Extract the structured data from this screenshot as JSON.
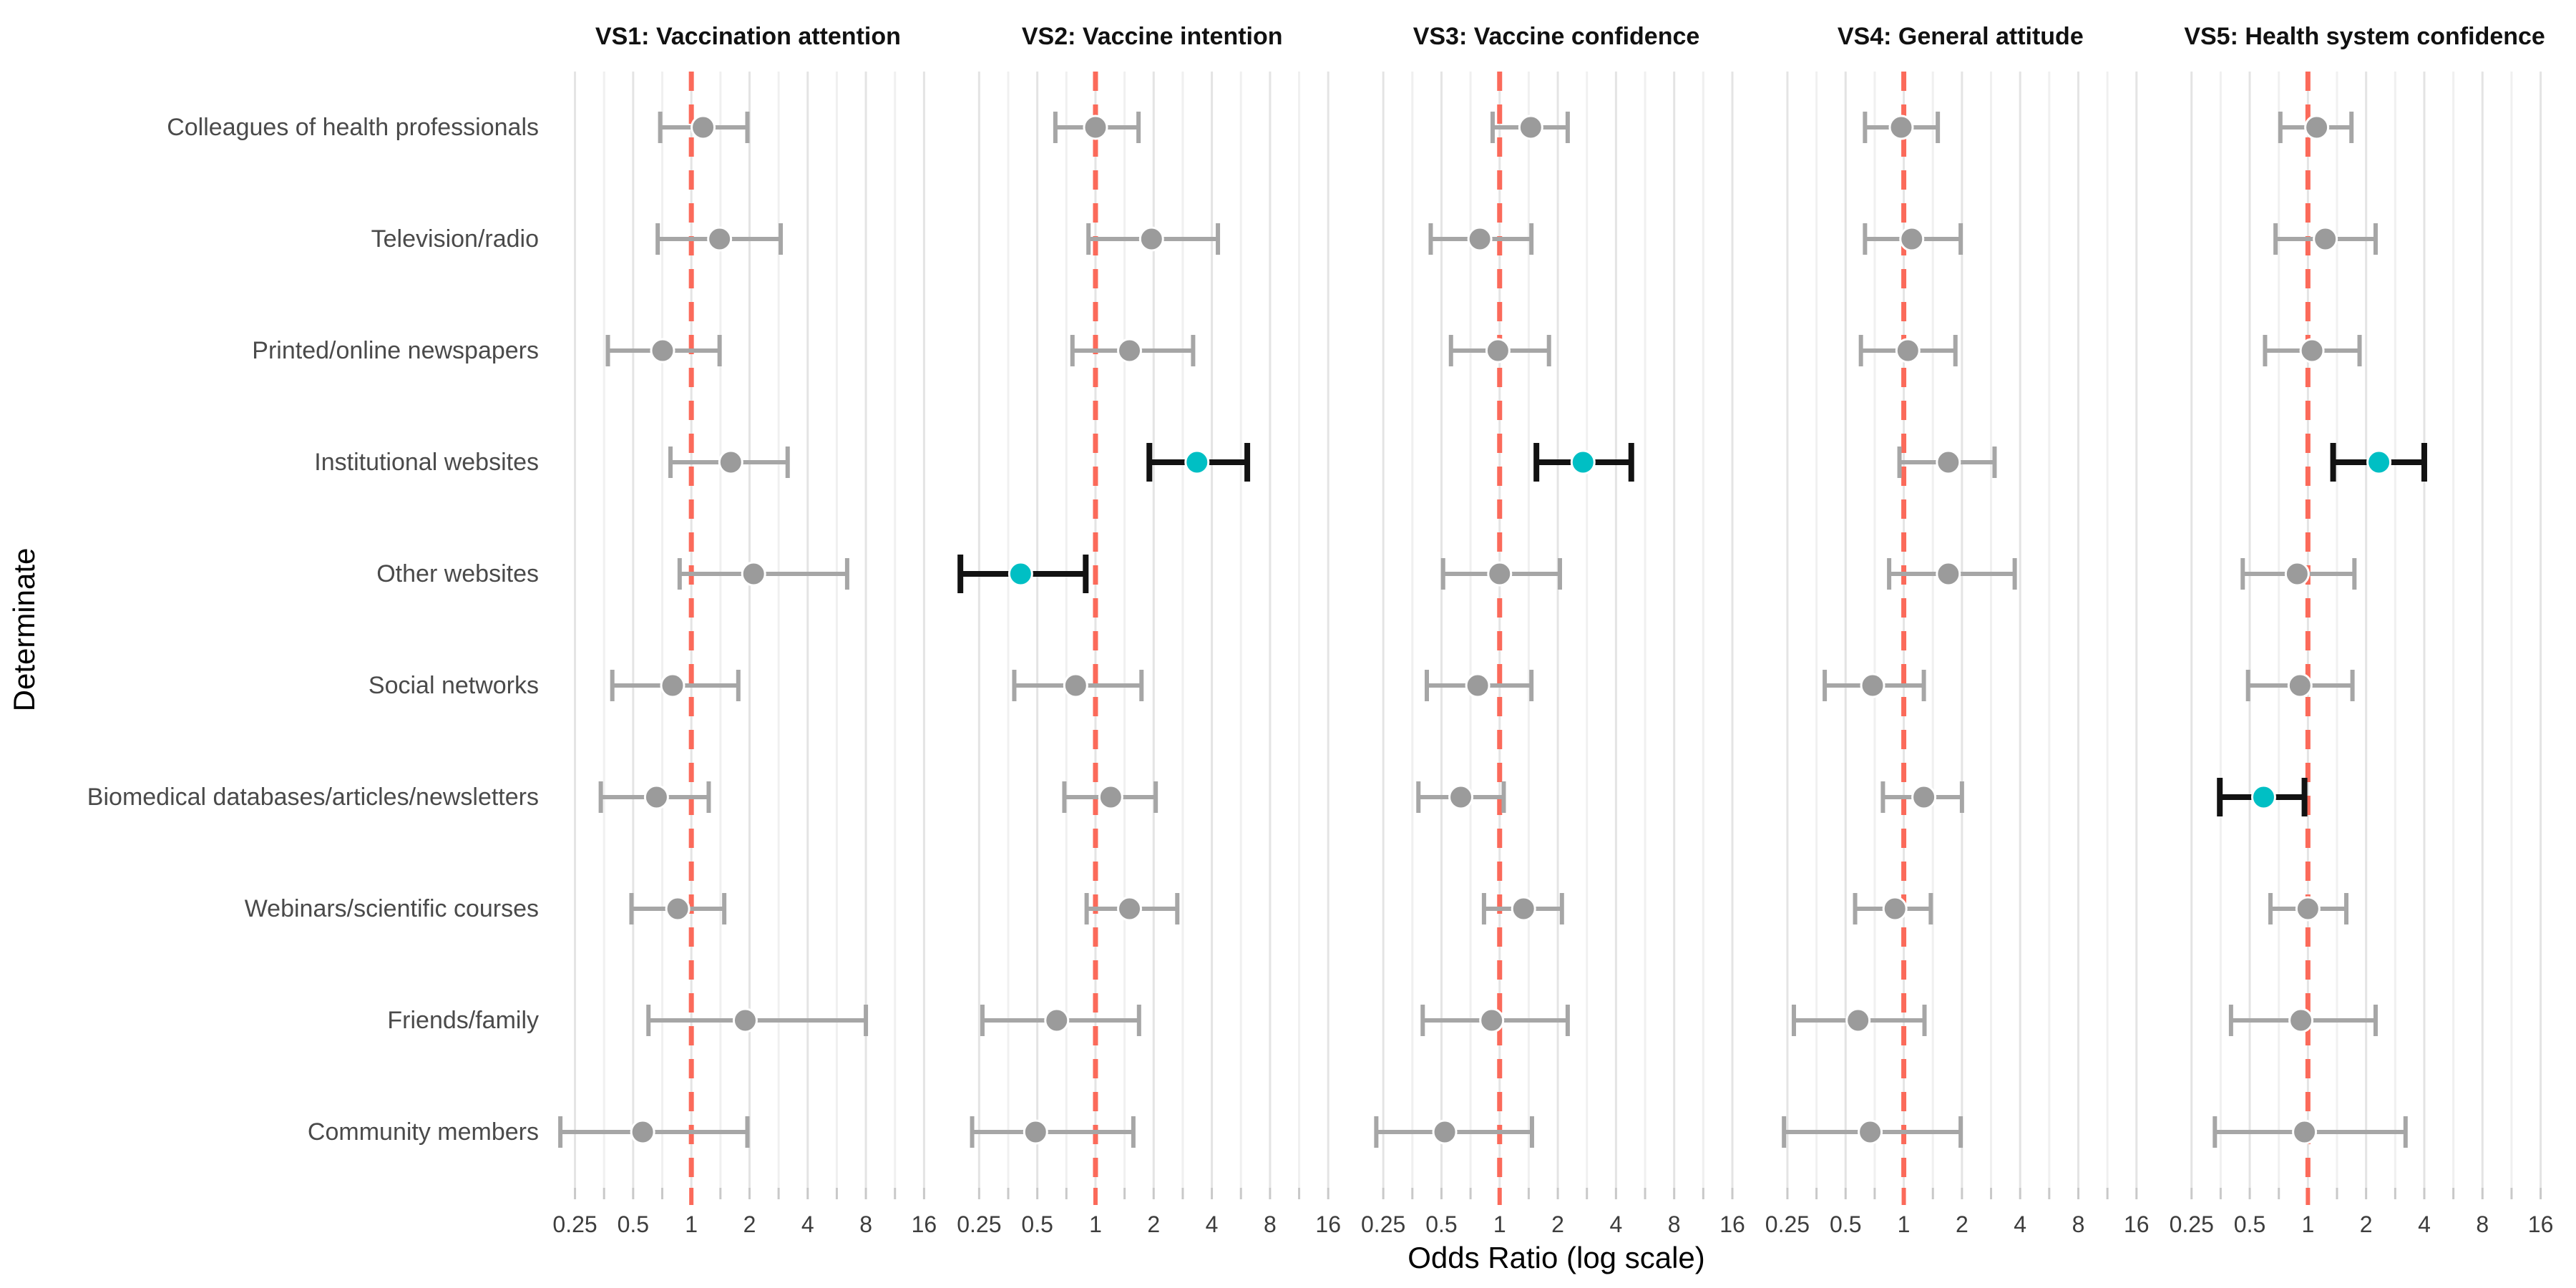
{
  "figure": {
    "xlabel": "Odds Ratio (log scale)",
    "ylabel": "Determinate"
  },
  "chart_data": {
    "type": "scatter",
    "subtype": "forest-plot",
    "x_scale": "log2",
    "x_ticks": [
      "0.25",
      "0.5",
      "1",
      "2",
      "4",
      "8",
      "16"
    ],
    "x_tick_values": [
      0.25,
      0.5,
      1,
      2,
      4,
      8,
      16
    ],
    "x_minor_gridline_values": [
      0.3536,
      0.7071,
      1.4142,
      2.8284,
      5.6569,
      11.3137
    ],
    "xlim": [
      0.196,
      19.7
    ],
    "reference_line_x": 1,
    "grid": "on",
    "legend": "none",
    "title": "",
    "xlabel": "Odds Ratio (log scale)",
    "ylabel": "Determinate",
    "categories": [
      "Colleagues of health professionals",
      "Television/radio",
      "Printed/online newspapers",
      "Institutional websites",
      "Other websites",
      "Social networks",
      "Biomedical databases/articles/newsletters",
      "Webinars/scientific courses",
      "Friends/family",
      "Community members"
    ],
    "panels": [
      {
        "title": "VS1: Vaccination attention",
        "points": [
          {
            "or": 1.15,
            "ci_low": 0.69,
            "ci_high": 1.95,
            "significant": false
          },
          {
            "or": 1.4,
            "ci_low": 0.67,
            "ci_high": 2.9,
            "significant": false
          },
          {
            "or": 0.71,
            "ci_low": 0.37,
            "ci_high": 1.4,
            "significant": false
          },
          {
            "or": 1.6,
            "ci_low": 0.78,
            "ci_high": 3.15,
            "significant": false
          },
          {
            "or": 2.1,
            "ci_low": 0.87,
            "ci_high": 6.4,
            "significant": false
          },
          {
            "or": 0.8,
            "ci_low": 0.39,
            "ci_high": 1.75,
            "significant": false
          },
          {
            "or": 0.66,
            "ci_low": 0.34,
            "ci_high": 1.23,
            "significant": false
          },
          {
            "or": 0.85,
            "ci_low": 0.49,
            "ci_high": 1.48,
            "significant": false
          },
          {
            "or": 1.9,
            "ci_low": 0.6,
            "ci_high": 8.0,
            "significant": false
          },
          {
            "or": 0.56,
            "ci_low": 0.21,
            "ci_high": 1.95,
            "significant": false
          }
        ]
      },
      {
        "title": "VS2: Vaccine intention",
        "points": [
          {
            "or": 1.0,
            "ci_low": 0.62,
            "ci_high": 1.67,
            "significant": false
          },
          {
            "or": 1.95,
            "ci_low": 0.92,
            "ci_high": 4.3,
            "significant": false
          },
          {
            "or": 1.5,
            "ci_low": 0.76,
            "ci_high": 3.2,
            "significant": false
          },
          {
            "or": 3.35,
            "ci_low": 1.9,
            "ci_high": 6.1,
            "significant": true
          },
          {
            "or": 0.41,
            "ci_low": 0.2,
            "ci_high": 0.89,
            "significant": true
          },
          {
            "or": 0.79,
            "ci_low": 0.38,
            "ci_high": 1.73,
            "significant": false
          },
          {
            "or": 1.2,
            "ci_low": 0.69,
            "ci_high": 2.05,
            "significant": false
          },
          {
            "or": 1.5,
            "ci_low": 0.9,
            "ci_high": 2.65,
            "significant": false
          },
          {
            "or": 0.63,
            "ci_low": 0.26,
            "ci_high": 1.68,
            "significant": false
          },
          {
            "or": 0.49,
            "ci_low": 0.23,
            "ci_high": 1.57,
            "significant": false
          }
        ]
      },
      {
        "title": "VS3: Vaccine confidence",
        "points": [
          {
            "or": 1.45,
            "ci_low": 0.92,
            "ci_high": 2.25,
            "significant": false
          },
          {
            "or": 0.79,
            "ci_low": 0.44,
            "ci_high": 1.46,
            "significant": false
          },
          {
            "or": 0.98,
            "ci_low": 0.56,
            "ci_high": 1.8,
            "significant": false
          },
          {
            "or": 2.7,
            "ci_low": 1.55,
            "ci_high": 4.8,
            "significant": true
          },
          {
            "or": 1.0,
            "ci_low": 0.51,
            "ci_high": 2.05,
            "significant": false
          },
          {
            "or": 0.77,
            "ci_low": 0.42,
            "ci_high": 1.46,
            "significant": false
          },
          {
            "or": 0.63,
            "ci_low": 0.38,
            "ci_high": 1.05,
            "significant": false
          },
          {
            "or": 1.33,
            "ci_low": 0.83,
            "ci_high": 2.1,
            "significant": false
          },
          {
            "or": 0.91,
            "ci_low": 0.4,
            "ci_high": 2.25,
            "significant": false
          },
          {
            "or": 0.52,
            "ci_low": 0.23,
            "ci_high": 1.47,
            "significant": false
          }
        ]
      },
      {
        "title": "VS4: General attitude",
        "points": [
          {
            "or": 0.97,
            "ci_low": 0.63,
            "ci_high": 1.5,
            "significant": false
          },
          {
            "or": 1.1,
            "ci_low": 0.63,
            "ci_high": 1.97,
            "significant": false
          },
          {
            "or": 1.05,
            "ci_low": 0.6,
            "ci_high": 1.85,
            "significant": false
          },
          {
            "or": 1.7,
            "ci_low": 0.95,
            "ci_high": 2.95,
            "significant": false
          },
          {
            "or": 1.7,
            "ci_low": 0.84,
            "ci_high": 3.75,
            "significant": false
          },
          {
            "or": 0.69,
            "ci_low": 0.39,
            "ci_high": 1.27,
            "significant": false
          },
          {
            "or": 1.27,
            "ci_low": 0.78,
            "ci_high": 2.0,
            "significant": false
          },
          {
            "or": 0.9,
            "ci_low": 0.56,
            "ci_high": 1.38,
            "significant": false
          },
          {
            "or": 0.58,
            "ci_low": 0.27,
            "ci_high": 1.28,
            "significant": false
          },
          {
            "or": 0.67,
            "ci_low": 0.24,
            "ci_high": 1.97,
            "significant": false
          }
        ]
      },
      {
        "title": "VS5: Health system confidence",
        "points": [
          {
            "or": 1.11,
            "ci_low": 0.72,
            "ci_high": 1.68,
            "significant": false
          },
          {
            "or": 1.23,
            "ci_low": 0.68,
            "ci_high": 2.24,
            "significant": false
          },
          {
            "or": 1.05,
            "ci_low": 0.6,
            "ci_high": 1.85,
            "significant": false
          },
          {
            "or": 2.33,
            "ci_low": 1.35,
            "ci_high": 4.0,
            "significant": true
          },
          {
            "or": 0.88,
            "ci_low": 0.46,
            "ci_high": 1.74,
            "significant": false
          },
          {
            "or": 0.91,
            "ci_low": 0.49,
            "ci_high": 1.7,
            "significant": false
          },
          {
            "or": 0.59,
            "ci_low": 0.35,
            "ci_high": 0.96,
            "significant": true
          },
          {
            "or": 1.0,
            "ci_low": 0.64,
            "ci_high": 1.58,
            "significant": false
          },
          {
            "or": 0.92,
            "ci_low": 0.4,
            "ci_high": 2.24,
            "significant": false
          },
          {
            "or": 0.96,
            "ci_low": 0.33,
            "ci_high": 3.2,
            "significant": false
          }
        ]
      }
    ],
    "colors": {
      "point": "#9b9b9b",
      "error_bar": "#a6a6a6",
      "significant_point": "#00bfc4",
      "significant_error_bar": "#121212",
      "reference_line": "#fb6a5a",
      "gridline_major": "#e4e4e4",
      "gridline_minor": "#f0f0f0",
      "axis_tick": "#c9c9c9",
      "tick_label_text": "#3d3d3d",
      "category_label_text": "#4a4a4a",
      "panel_title_text": "#111111",
      "axis_title_text": "#000000",
      "background": "#ffffff"
    }
  }
}
